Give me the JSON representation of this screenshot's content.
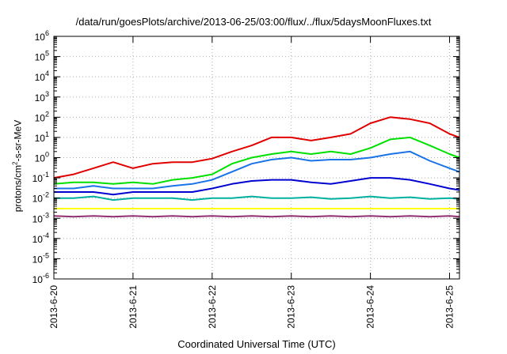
{
  "chart_data": {
    "type": "line",
    "title": "/data/run/goesPlots/archive/2013-06-25/03:00/flux/../flux/5daysMoonFluxes.txt",
    "xlabel": "Coordinated Universal Time (UTC)",
    "ylabel": {
      "prefix": "protons/cm",
      "sup": "2",
      "suffix": "-s-sr-MeV"
    },
    "x_ticks": [
      "2013-6-20",
      "2013-6-21",
      "2013-6-22",
      "2013-6-23",
      "2013-6-24",
      "2013-6-25"
    ],
    "y_ticks": [
      {
        "base": "10",
        "exp": "-6"
      },
      {
        "base": "10",
        "exp": "-5"
      },
      {
        "base": "10",
        "exp": "-4"
      },
      {
        "base": "10",
        "exp": "-3"
      },
      {
        "base": "10",
        "exp": "-2"
      },
      {
        "base": "10",
        "exp": "-1"
      },
      {
        "base": "10",
        "exp": "0"
      },
      {
        "base": "10",
        "exp": "1"
      },
      {
        "base": "10",
        "exp": "2"
      },
      {
        "base": "10",
        "exp": "3"
      },
      {
        "base": "10",
        "exp": "4"
      },
      {
        "base": "10",
        "exp": "5"
      },
      {
        "base": "10",
        "exp": "6"
      }
    ],
    "xlim": [
      "2013-06-20T00:00",
      "2013-06-25T03:00"
    ],
    "ylim": [
      1e-06,
      1000000.0
    ],
    "y_scale": "log",
    "grid": true,
    "x": [
      "2013-06-20T00:00",
      "2013-06-20T06:00",
      "2013-06-20T12:00",
      "2013-06-20T18:00",
      "2013-06-21T00:00",
      "2013-06-21T06:00",
      "2013-06-21T12:00",
      "2013-06-21T18:00",
      "2013-06-22T00:00",
      "2013-06-22T06:00",
      "2013-06-22T12:00",
      "2013-06-22T18:00",
      "2013-06-23T00:00",
      "2013-06-23T06:00",
      "2013-06-23T12:00",
      "2013-06-23T18:00",
      "2013-06-24T00:00",
      "2013-06-24T06:00",
      "2013-06-24T12:00",
      "2013-06-24T18:00",
      "2013-06-25T00:00",
      "2013-06-25T03:00"
    ],
    "series": [
      {
        "color": "#e00000",
        "values": [
          0.1,
          0.15,
          0.3,
          0.6,
          0.3,
          0.5,
          0.6,
          0.6,
          0.9,
          2,
          4,
          10,
          10,
          7,
          10,
          15,
          50,
          100,
          80,
          50,
          15,
          10
        ]
      },
      {
        "color": "#00e000",
        "values": [
          0.05,
          0.06,
          0.06,
          0.05,
          0.06,
          0.05,
          0.08,
          0.1,
          0.15,
          0.5,
          1,
          1.5,
          2,
          1.5,
          2,
          1.5,
          3,
          8,
          10,
          4,
          1.5,
          1
        ]
      },
      {
        "color": "#1a73e8",
        "values": [
          0.03,
          0.03,
          0.04,
          0.03,
          0.03,
          0.03,
          0.04,
          0.05,
          0.08,
          0.2,
          0.5,
          0.8,
          1,
          0.7,
          0.8,
          0.8,
          1,
          1.5,
          2,
          0.7,
          0.3,
          0.2
        ]
      },
      {
        "color": "#0000d0",
        "values": [
          0.02,
          0.02,
          0.02,
          0.015,
          0.02,
          0.02,
          0.02,
          0.02,
          0.03,
          0.05,
          0.07,
          0.08,
          0.08,
          0.06,
          0.05,
          0.07,
          0.1,
          0.1,
          0.08,
          0.05,
          0.03,
          0.025
        ]
      },
      {
        "color": "#00b0a0",
        "values": [
          0.01,
          0.01,
          0.012,
          0.008,
          0.01,
          0.01,
          0.01,
          0.008,
          0.01,
          0.01,
          0.012,
          0.01,
          0.01,
          0.011,
          0.009,
          0.01,
          0.012,
          0.01,
          0.011,
          0.009,
          0.01,
          0.009
        ]
      },
      {
        "color": "#ffff00",
        "values": [
          0.003,
          0.003,
          0.003,
          0.003,
          0.003,
          0.003,
          0.003,
          0.003,
          0.003,
          0.003,
          0.003,
          0.003,
          0.003,
          0.003,
          0.003,
          0.003,
          0.003,
          0.003,
          0.003,
          0.003,
          0.003,
          0.003
        ]
      },
      {
        "color": "#903070",
        "values": [
          0.0013,
          0.0012,
          0.0013,
          0.0012,
          0.0013,
          0.0012,
          0.0013,
          0.0012,
          0.0013,
          0.0012,
          0.0013,
          0.0012,
          0.0013,
          0.0012,
          0.0013,
          0.0012,
          0.0013,
          0.0012,
          0.0013,
          0.0012,
          0.0013,
          0.0012
        ]
      }
    ]
  }
}
